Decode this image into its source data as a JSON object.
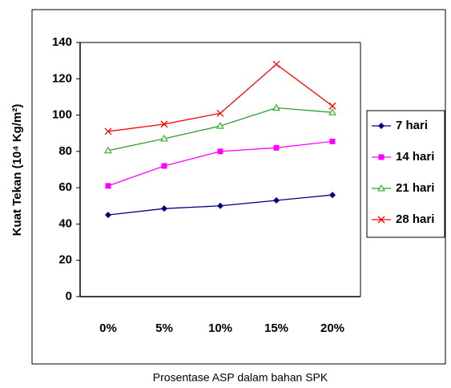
{
  "chart_data": {
    "type": "line",
    "y_label": "Kuat Tekan (10⁴ Kg/m²)",
    "x_label": "Prosentase ASP dalam bahan SPK",
    "categories": [
      "0%",
      "5%",
      "10%",
      "15%",
      "20%"
    ],
    "series": [
      {
        "name": "7 hari",
        "color": "#000080",
        "marker": "diamond",
        "values": [
          45,
          48.5,
          50,
          53,
          56
        ]
      },
      {
        "name": "14 hari",
        "color": "#ff00ff",
        "marker": "square",
        "values": [
          61,
          72,
          80,
          82,
          85.5
        ]
      },
      {
        "name": "21 hari",
        "color": "#2e9e2e",
        "marker": "triangle",
        "values": [
          80.5,
          87,
          94,
          104,
          101.5
        ]
      },
      {
        "name": "28 hari",
        "color": "#ff0000",
        "marker": "x",
        "values": [
          91,
          95,
          101,
          128,
          105
        ]
      }
    ],
    "ylim": [
      0,
      140
    ],
    "yticks": [
      0,
      20,
      40,
      60,
      80,
      100,
      120,
      140
    ],
    "grid": false,
    "legend": "right"
  }
}
